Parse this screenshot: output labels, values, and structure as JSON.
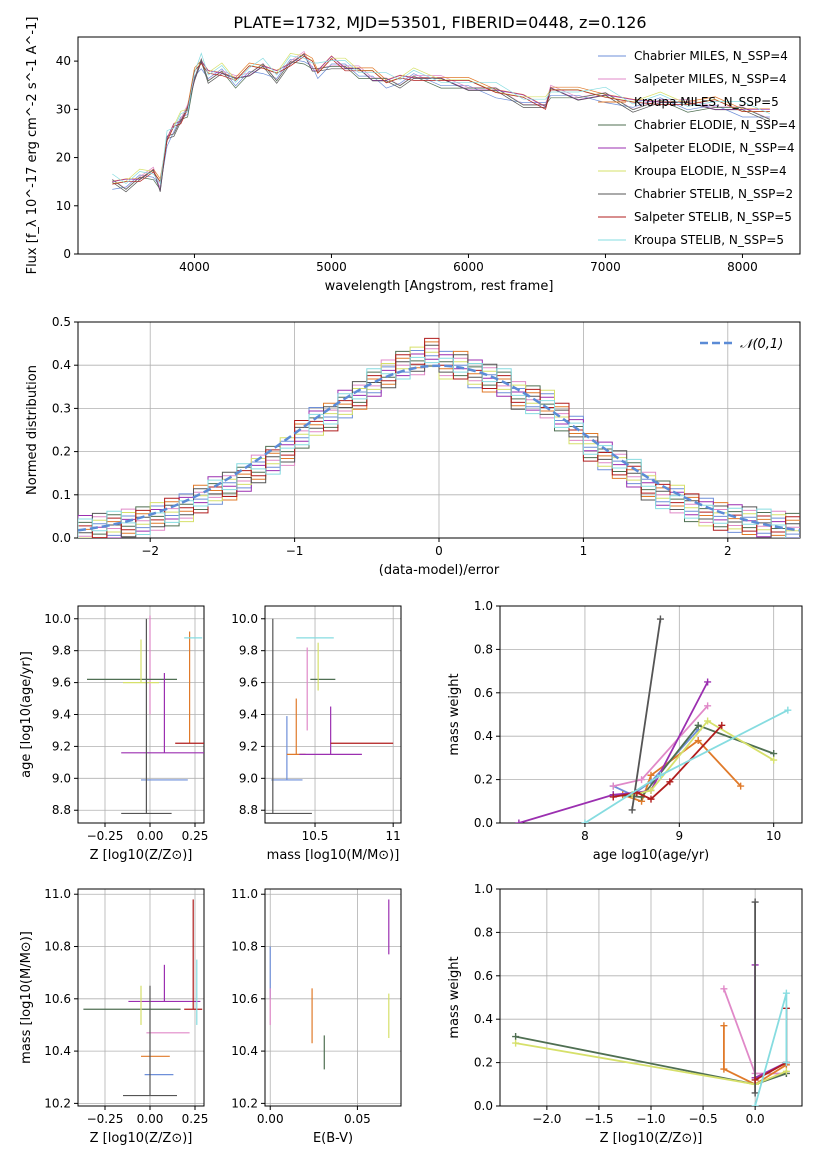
{
  "figure_title": "PLATE=1732, MJD=53501, FIBERID=0448, z=0.126",
  "series_colors": [
    "#6e8fd9",
    "#e089c8",
    "#e07a2a",
    "#4f6f52",
    "#9b2fb0",
    "#d6e06a",
    "#555555",
    "#b01d1d",
    "#86dce0"
  ],
  "chart_data": [
    {
      "id": "spectrum",
      "type": "line",
      "title": "PLATE=1732, MJD=53501, FIBERID=0448, z=0.126",
      "xlabel": "wavelength [Angstrom, rest frame]",
      "ylabel": "Flux [f_λ 10^-17 erg cm^-2 s^-1 A^-1]",
      "xlim": [
        3150,
        8420
      ],
      "ylim": [
        0,
        45
      ],
      "xticks": [
        4000,
        5000,
        6000,
        7000,
        8000
      ],
      "yticks": [
        0,
        10,
        20,
        30,
        40
      ],
      "legend_position": "top-right",
      "legend": [
        "Chabrier MILES, N_SSP=4",
        "Salpeter MILES, N_SSP=4",
        "Kroupa MILES, N_SSP=5",
        "Chabrier ELODIE, N_SSP=4",
        "Salpeter ELODIE, N_SSP=4",
        "Kroupa ELODIE, N_SSP=4",
        "Chabrier STELIB, N_SSP=2",
        "Salpeter STELIB, N_SSP=5",
        "Kroupa STELIB, N_SSP=5"
      ],
      "x": [
        3400,
        3500,
        3600,
        3700,
        3750,
        3800,
        3850,
        3900,
        3950,
        4000,
        4050,
        4100,
        4200,
        4300,
        4400,
        4500,
        4600,
        4700,
        4800,
        4860,
        4900,
        5000,
        5100,
        5200,
        5300,
        5400,
        5500,
        5600,
        5800,
        6000,
        6200,
        6400,
        6563,
        6600,
        6800,
        7000,
        7200,
        7400,
        7600,
        7800,
        8000,
        8200
      ],
      "y": [
        15,
        14.5,
        16,
        17,
        14,
        24,
        26,
        28,
        30,
        37,
        40,
        37,
        38,
        36,
        38,
        39,
        37,
        40,
        41,
        39,
        38,
        40,
        39,
        38,
        37,
        36,
        36,
        37,
        36,
        35,
        34,
        32,
        31,
        34,
        33,
        33,
        31,
        32,
        31,
        31,
        30,
        29
      ]
    },
    {
      "id": "residuals",
      "type": "histogram",
      "xlabel": "(data-model)/error",
      "ylabel": "Normed distribution",
      "xlim": [
        -2.5,
        2.5
      ],
      "ylim": [
        0,
        0.5
      ],
      "xticks": [
        -2,
        -1,
        0,
        1,
        2
      ],
      "yticks": [
        0.0,
        0.1,
        0.2,
        0.3,
        0.4,
        0.5
      ],
      "legend": [
        "𝒩(0,1)"
      ],
      "legend_position": "top-right",
      "bins": [
        -2.5,
        -2.4,
        -2.3,
        -2.2,
        -2.1,
        -2.0,
        -1.9,
        -1.8,
        -1.7,
        -1.6,
        -1.5,
        -1.4,
        -1.3,
        -1.2,
        -1.1,
        -1.0,
        -0.9,
        -0.8,
        -0.7,
        -0.6,
        -0.5,
        -0.4,
        -0.3,
        -0.2,
        -0.1,
        0.0,
        0.1,
        0.2,
        0.3,
        0.4,
        0.5,
        0.6,
        0.7,
        0.8,
        0.9,
        1.0,
        1.1,
        1.2,
        1.3,
        1.4,
        1.5,
        1.6,
        1.7,
        1.8,
        1.9,
        2.0,
        2.1,
        2.2,
        2.3,
        2.4,
        2.5
      ],
      "values": [
        0.02,
        0.025,
        0.03,
        0.035,
        0.04,
        0.05,
        0.06,
        0.07,
        0.09,
        0.11,
        0.12,
        0.14,
        0.16,
        0.18,
        0.2,
        0.24,
        0.27,
        0.28,
        0.31,
        0.33,
        0.36,
        0.38,
        0.4,
        0.41,
        0.43,
        0.4,
        0.4,
        0.38,
        0.37,
        0.36,
        0.33,
        0.32,
        0.31,
        0.28,
        0.25,
        0.21,
        0.19,
        0.17,
        0.15,
        0.12,
        0.1,
        0.09,
        0.07,
        0.06,
        0.05,
        0.045,
        0.04,
        0.035,
        0.03,
        0.025
      ]
    },
    {
      "id": "age-vs-Z",
      "type": "errorbar",
      "xlabel": "Z [log10(Z/Z⊙)]",
      "ylabel": "age [log10(age/yr)]",
      "xlim": [
        -0.4,
        0.3
      ],
      "ylim": [
        8.72,
        10.08
      ],
      "xticks": [
        -0.25,
        0.0,
        0.25
      ],
      "xticklabels": [
        "−0.25",
        "0.00",
        "0.25"
      ],
      "yticks": [
        8.8,
        9.0,
        9.2,
        9.4,
        9.6,
        9.8,
        10.0
      ],
      "points": [
        {
          "x": 0.08,
          "y": 8.99,
          "xerr": 0.13,
          "yerr": 0.0
        },
        {
          "x": 0.0,
          "y": 9.4,
          "xerr": 0.0,
          "yerr": 0.62
        },
        {
          "x": 0.22,
          "y": 9.22,
          "xerr": 0.0,
          "yerr": 0.7
        },
        {
          "x": -0.1,
          "y": 9.62,
          "xerr": 0.25,
          "yerr": 0.0
        },
        {
          "x": 0.08,
          "y": 9.16,
          "xerr": 0.24,
          "yerr": 0.5
        },
        {
          "x": -0.05,
          "y": 9.6,
          "xerr": 0.1,
          "yerr": 0.27
        },
        {
          "x": -0.02,
          "y": 8.78,
          "xerr": 0.14,
          "yerr": 1.22
        },
        {
          "x": 0.22,
          "y": 9.22,
          "xerr": 0.08,
          "yerr": 0.0
        },
        {
          "x": 0.24,
          "y": 9.88,
          "xerr": 0.05,
          "yerr": 0.0
        }
      ]
    },
    {
      "id": "age-vs-mass",
      "type": "errorbar",
      "xlabel": "mass [log10(M/M⊙)]",
      "xlim": [
        10.18,
        11.05
      ],
      "ylim": [
        8.72,
        10.08
      ],
      "xticks": [
        10.5,
        11.0
      ],
      "yticks": [
        8.8,
        9.0,
        9.2,
        9.4,
        9.6,
        9.8,
        10.0
      ],
      "points": [
        {
          "x": 10.32,
          "y": 8.99,
          "xerr": 0.1,
          "yerr": 0.4
        },
        {
          "x": 10.45,
          "y": 9.3,
          "xerr": 0.0,
          "yerr": 0.52
        },
        {
          "x": 10.38,
          "y": 9.15,
          "xerr": 0.06,
          "yerr": 0.35
        },
        {
          "x": 10.55,
          "y": 9.62,
          "xerr": 0.08,
          "yerr": 0.0
        },
        {
          "x": 10.6,
          "y": 9.15,
          "xerr": 0.2,
          "yerr": 0.3
        },
        {
          "x": 10.52,
          "y": 9.55,
          "xerr": 0.0,
          "yerr": 0.3
        },
        {
          "x": 10.23,
          "y": 8.78,
          "xerr": 0.25,
          "yerr": 1.22
        },
        {
          "x": 10.8,
          "y": 9.22,
          "xerr": 0.2,
          "yerr": 0.0
        },
        {
          "x": 10.5,
          "y": 9.88,
          "xerr": 0.12,
          "yerr": 0.0
        }
      ]
    },
    {
      "id": "weight-vs-age",
      "type": "line",
      "xlabel": "age log10(age/yr)",
      "ylabel": "mass weight",
      "xlim": [
        7.1,
        10.3
      ],
      "ylim": [
        0,
        1.0
      ],
      "xticks": [
        8,
        9,
        10
      ],
      "yticks": [
        0.0,
        0.2,
        0.4,
        0.6,
        0.8,
        1.0
      ],
      "series": [
        {
          "x": [
            8.3,
            8.5,
            8.7,
            9.2
          ],
          "y": [
            0.17,
            0.13,
            0.19,
            0.43
          ]
        },
        {
          "x": [
            8.3,
            8.6,
            9.3
          ],
          "y": [
            0.17,
            0.2,
            0.54
          ]
        },
        {
          "x": [
            8.4,
            8.6,
            8.7,
            9.2,
            9.65
          ],
          "y": [
            0.13,
            0.1,
            0.22,
            0.38,
            0.17
          ]
        },
        {
          "x": [
            8.3,
            8.6,
            9.2,
            10.0
          ],
          "y": [
            0.13,
            0.12,
            0.45,
            0.32
          ]
        },
        {
          "x": [
            7.3,
            8.3,
            8.55,
            8.7,
            9.3
          ],
          "y": [
            0.0,
            0.13,
            0.14,
            0.15,
            0.65
          ]
        },
        {
          "x": [
            8.5,
            8.7,
            9.3,
            10.0
          ],
          "y": [
            0.13,
            0.15,
            0.47,
            0.29
          ]
        },
        {
          "x": [
            8.5,
            8.8
          ],
          "y": [
            0.06,
            0.94
          ]
        },
        {
          "x": [
            8.3,
            8.55,
            8.7,
            8.9,
            9.45
          ],
          "y": [
            0.12,
            0.14,
            0.11,
            0.19,
            0.45
          ]
        },
        {
          "x": [
            8.0,
            8.8,
            10.15
          ],
          "y": [
            0.0,
            0.22,
            0.52
          ]
        }
      ]
    },
    {
      "id": "mass-vs-Z",
      "type": "errorbar",
      "xlabel": "Z [log10(Z/Z⊙)]",
      "ylabel": "mass [log10(M/M⊙)]",
      "xlim": [
        -0.4,
        0.3
      ],
      "ylim": [
        10.19,
        11.02
      ],
      "xticks": [
        -0.25,
        0.0,
        0.25
      ],
      "xticklabels": [
        "−0.25",
        "0.00",
        "0.25"
      ],
      "yticks": [
        10.2,
        10.4,
        10.6,
        10.8,
        11.0
      ],
      "points": [
        {
          "x": 0.05,
          "y": 10.31,
          "xerr": 0.08,
          "yerr": 0.0
        },
        {
          "x": 0.1,
          "y": 10.47,
          "xerr": 0.12,
          "yerr": 0.0
        },
        {
          "x": 0.03,
          "y": 10.38,
          "xerr": 0.08,
          "yerr": 0.0
        },
        {
          "x": -0.1,
          "y": 10.56,
          "xerr": 0.27,
          "yerr": 0.0
        },
        {
          "x": 0.08,
          "y": 10.59,
          "xerr": 0.2,
          "yerr": 0.14
        },
        {
          "x": -0.05,
          "y": 10.5,
          "xerr": 0.0,
          "yerr": 0.15
        },
        {
          "x": 0.0,
          "y": 10.23,
          "xerr": 0.15,
          "yerr": 0.42
        },
        {
          "x": 0.24,
          "y": 10.56,
          "xerr": 0.05,
          "yerr": 0.42
        },
        {
          "x": 0.26,
          "y": 10.5,
          "xerr": 0.0,
          "yerr": 0.25
        }
      ]
    },
    {
      "id": "mass-vs-EBV",
      "type": "errorbar",
      "xlabel": "E(B-V)",
      "xlim": [
        -0.003,
        0.075
      ],
      "ylim": [
        10.19,
        11.02
      ],
      "xticks": [
        0.0,
        0.05
      ],
      "xticklabels": [
        "0.00",
        "0.05"
      ],
      "yticks": [
        10.2,
        10.4,
        10.6,
        10.8,
        11.0
      ],
      "points": [
        {
          "x": 0.0,
          "y": 10.6,
          "xerr": 0.0,
          "yerr": 0.2
        },
        {
          "x": 0.0,
          "y": 10.5,
          "xerr": 0.0,
          "yerr": 0.14
        },
        {
          "x": 0.024,
          "y": 10.43,
          "xerr": 0.0,
          "yerr": 0.21
        },
        {
          "x": 0.031,
          "y": 10.33,
          "xerr": 0.0,
          "yerr": 0.13
        },
        {
          "x": 0.068,
          "y": 10.77,
          "xerr": 0.0,
          "yerr": 0.21
        },
        {
          "x": 0.068,
          "y": 10.45,
          "xerr": 0.0,
          "yerr": 0.17
        }
      ]
    },
    {
      "id": "weight-vs-Z",
      "type": "line",
      "xlabel": "Z [log10(Z/Z⊙)]",
      "ylabel": "mass weight",
      "xlim": [
        -2.45,
        0.45
      ],
      "ylim": [
        0,
        1.0
      ],
      "xticks": [
        -2.0,
        -1.5,
        -1.0,
        -0.5,
        0.0
      ],
      "xticklabels": [
        "−2.0",
        "−1.5",
        "−1.0",
        "−0.5",
        "0.0"
      ],
      "yticks": [
        0.0,
        0.2,
        0.4,
        0.6,
        0.8,
        1.0
      ],
      "series": [
        {
          "x": [
            0.0,
            0.3
          ],
          "y": [
            0.13,
            0.2
          ]
        },
        {
          "x": [
            -0.3,
            0.0,
            0.3
          ],
          "y": [
            0.54,
            0.15,
            0.15
          ]
        },
        {
          "x": [
            -0.3,
            -0.3,
            0.0,
            0.3
          ],
          "y": [
            0.37,
            0.17,
            0.1,
            0.19
          ]
        },
        {
          "x": [
            -2.3,
            0.0,
            0.3
          ],
          "y": [
            0.32,
            0.1,
            0.15
          ]
        },
        {
          "x": [
            0.0,
            0.0,
            0.3
          ],
          "y": [
            0.65,
            0.13,
            0.2
          ]
        },
        {
          "x": [
            -2.3,
            0.0,
            0.3
          ],
          "y": [
            0.29,
            0.1,
            0.16
          ]
        },
        {
          "x": [
            0.0,
            0.0
          ],
          "y": [
            0.94,
            0.06
          ]
        },
        {
          "x": [
            0.0,
            0.3,
            0.3
          ],
          "y": [
            0.12,
            0.2,
            0.45
          ]
        },
        {
          "x": [
            0.0,
            0.3,
            0.3
          ],
          "y": [
            0.0,
            0.52,
            0.2
          ]
        }
      ]
    }
  ]
}
